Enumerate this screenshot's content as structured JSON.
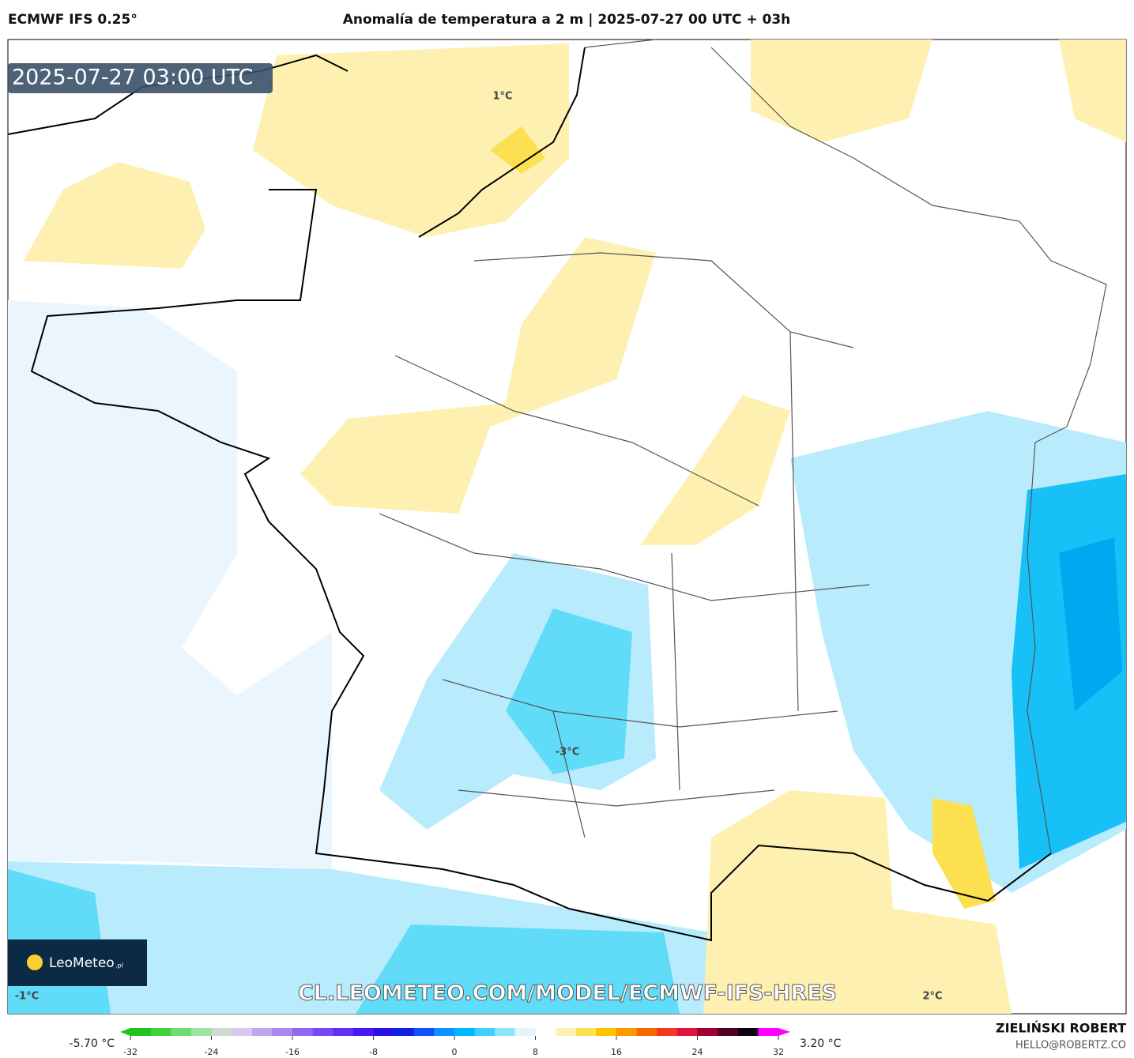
{
  "header": {
    "model": "ECMWF IFS 0.25°",
    "title": "Anomalía de temperatura a 2 m | 2025-07-27 00 UTC + 03h"
  },
  "map": {
    "timestamp": "2025-07-27 03:00 UTC",
    "labels": [
      "1°C",
      "-3°C",
      "-1°C",
      "2°C"
    ],
    "watermark": "CL.LEOMETEO.COM/MODEL/ECMWF-IFS-HRES"
  },
  "logo": {
    "name": "LeoMeteo",
    "suffix": ".pl"
  },
  "colorbar": {
    "min_label": "-5.70 °C",
    "max_label": "3.20 °C",
    "lim": [
      -32,
      32
    ],
    "ticks": [
      -32,
      -24,
      -16,
      -8,
      0,
      8,
      16,
      24,
      32
    ],
    "colors": [
      "#1ec31e",
      "#3fd23f",
      "#6fdc6f",
      "#a0e2a0",
      "#d0d8d0",
      "#d8c8f0",
      "#c0a8f0",
      "#a888f0",
      "#9068f0",
      "#7848f0",
      "#6030f0",
      "#4818f0",
      "#2a10e8",
      "#1020e0",
      "#1050f8",
      "#1090ff",
      "#00b8ff",
      "#40d0ff",
      "#90e4fc",
      "#e4f3fc",
      "#ffffff",
      "#fdf0b0",
      "#fde050",
      "#fcc400",
      "#fc9800",
      "#f86800",
      "#f03820",
      "#e01040",
      "#a00030",
      "#500020",
      "#100010",
      "#ff00ff"
    ]
  },
  "credit": {
    "name": "ZIELIŃSKI ROBERT",
    "email": "HELLO@ROBERTZ.CO"
  }
}
